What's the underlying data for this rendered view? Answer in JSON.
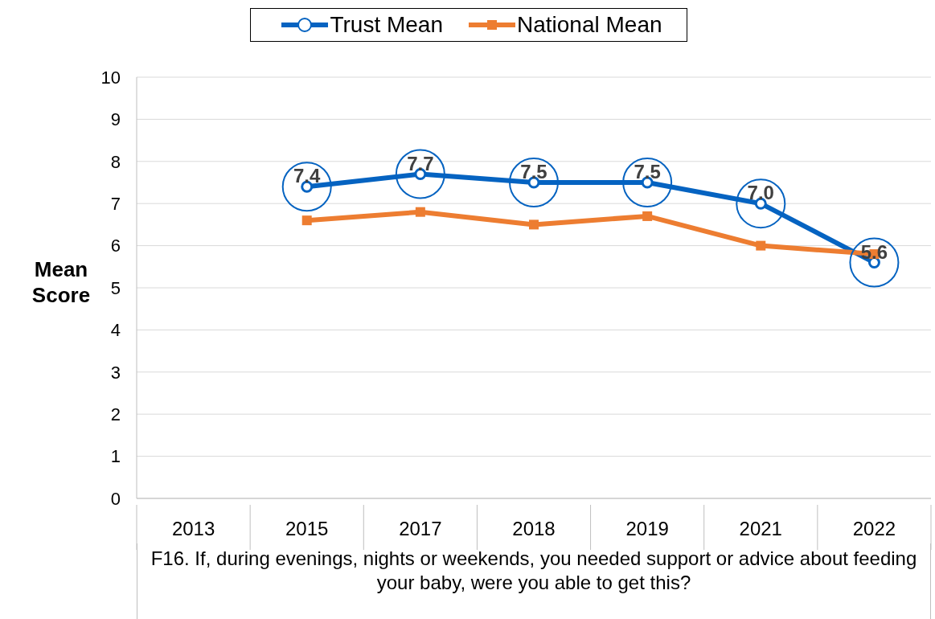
{
  "chart_data": {
    "type": "line",
    "xlabel": "F16. If, during evenings, nights or weekends, you needed support or advice about feeding your baby, were you able to get this?",
    "ylabel": "Mean Score",
    "categories": [
      "2013",
      "2015",
      "2017",
      "2018",
      "2019",
      "2021",
      "2022"
    ],
    "series": [
      {
        "name": "Trust Mean",
        "color": "#0563c1",
        "marker": "circle",
        "values": [
          null,
          7.4,
          7.7,
          7.5,
          7.5,
          7.0,
          5.6
        ],
        "value_labels": [
          null,
          "7.4",
          "7.7",
          "7.5",
          "7.5",
          "7.0",
          "5.6"
        ]
      },
      {
        "name": "National Mean",
        "color": "#ed7d31",
        "marker": "square",
        "values": [
          null,
          6.6,
          6.8,
          6.5,
          6.7,
          6.0,
          5.8
        ]
      }
    ],
    "ylim": [
      0,
      10
    ],
    "yticks": [
      0,
      1,
      2,
      3,
      4,
      5,
      6,
      7,
      8,
      9,
      10
    ],
    "grid": "y",
    "legend": "top",
    "line_style": "solid"
  }
}
